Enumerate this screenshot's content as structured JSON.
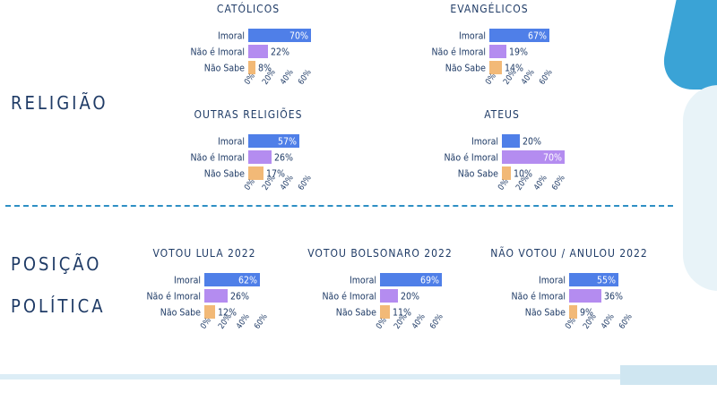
{
  "sections": {
    "religiao": "RELIGIÃO",
    "posicao_1": "POSIÇÃO",
    "posicao_2": "POLÍTICA"
  },
  "colors": {
    "Imoral": "#4f7fe8",
    "Não é Imoral": "#b48cf0",
    "Não Sabe": "#f2b977"
  },
  "chart_data": [
    {
      "type": "bar",
      "title": "CATÓLICOS",
      "categories": [
        "Imoral",
        "Não é Imoral",
        "Não Sabe"
      ],
      "values": [
        70,
        22,
        8
      ],
      "value_labels": [
        "70%",
        "22%",
        "8%"
      ],
      "xticks": [
        "0%",
        "20%",
        "40%",
        "60%"
      ],
      "xlim": [
        0,
        80
      ]
    },
    {
      "type": "bar",
      "title": "EVANGÉLICOS",
      "categories": [
        "Imoral",
        "Não é Imoral",
        "Não Sabe"
      ],
      "values": [
        67,
        19,
        14
      ],
      "value_labels": [
        "67%",
        "19%",
        "14%"
      ],
      "xticks": [
        "0%",
        "20%",
        "40%",
        "60%"
      ],
      "xlim": [
        0,
        80
      ]
    },
    {
      "type": "bar",
      "title": "OUTRAS RELIGIÕES",
      "categories": [
        "Imoral",
        "Não é Imoral",
        "Não Sabe"
      ],
      "values": [
        57,
        26,
        17
      ],
      "value_labels": [
        "57%",
        "26%",
        "17%"
      ],
      "xticks": [
        "0%",
        "20%",
        "40%",
        "60%"
      ],
      "xlim": [
        0,
        80
      ]
    },
    {
      "type": "bar",
      "title": "ATEUS",
      "categories": [
        "Imoral",
        "Não é Imoral",
        "Não Sabe"
      ],
      "values": [
        20,
        70,
        10
      ],
      "value_labels": [
        "20%",
        "70%",
        "10%"
      ],
      "xticks": [
        "0%",
        "20%",
        "40%",
        "60%"
      ],
      "xlim": [
        0,
        80
      ]
    },
    {
      "type": "bar",
      "title": "VOTOU LULA 2022",
      "categories": [
        "Imoral",
        "Não é Imoral",
        "Não Sabe"
      ],
      "values": [
        62,
        26,
        12
      ],
      "value_labels": [
        "62%",
        "26%",
        "12%"
      ],
      "xticks": [
        "0%",
        "20%",
        "40%",
        "60%"
      ],
      "xlim": [
        0,
        80
      ]
    },
    {
      "type": "bar",
      "title": "VOTOU BOLSONARO 2022",
      "categories": [
        "Imoral",
        "Não é Imoral",
        "Não Sabe"
      ],
      "values": [
        69,
        20,
        11
      ],
      "value_labels": [
        "69%",
        "20%",
        "11%"
      ],
      "xticks": [
        "0%",
        "20%",
        "40%",
        "60%"
      ],
      "xlim": [
        0,
        80
      ]
    },
    {
      "type": "bar",
      "title": "NÃO VOTOU / ANULOU 2022",
      "categories": [
        "Imoral",
        "Não é Imoral",
        "Não Sabe"
      ],
      "values": [
        55,
        36,
        9
      ],
      "value_labels": [
        "55%",
        "36%",
        "9%"
      ],
      "xticks": [
        "0%",
        "20%",
        "40%",
        "60%"
      ],
      "xlim": [
        0,
        80
      ]
    }
  ]
}
